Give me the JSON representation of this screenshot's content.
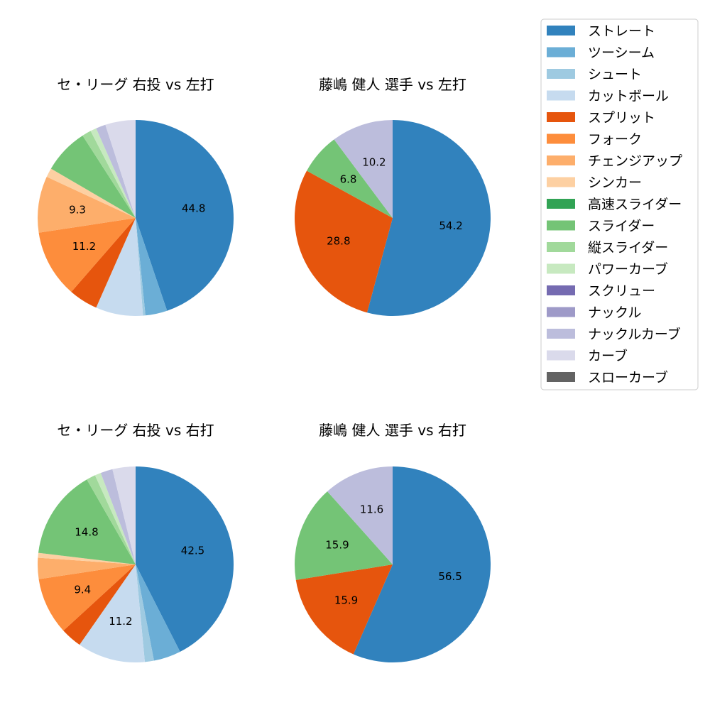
{
  "chart_data": [
    {
      "type": "pie",
      "title": "セ・リーグ 右投 vs 左打",
      "labels_shown_above_pct": 5,
      "values": {
        "ストレート": 44.8,
        "ツーシーム": 3.6,
        "シュート": 0.4,
        "カットボール": 7.8,
        "スプリット": 4.8,
        "フォーク": 11.2,
        "チェンジアップ": 9.3,
        "シンカー": 1.5,
        "スライダー": 7.5,
        "縦スライダー": 1.5,
        "パワーカーブ": 1.0,
        "ナックルカーブ": 1.6,
        "カーブ": 5.0
      },
      "data_labels": [
        "44.8",
        "11.2",
        "9.3"
      ]
    },
    {
      "type": "pie",
      "title": "藤嶋 健人 選手 vs 左打",
      "values": {
        "ストレート": 54.2,
        "スプリット": 28.8,
        "スライダー": 6.8,
        "ナックルカーブ": 10.2
      },
      "data_labels": [
        "54.2",
        "28.8",
        "6.8",
        "10.2"
      ]
    },
    {
      "type": "pie",
      "title": "セ・リーグ 右投 vs 右打",
      "values": {
        "ストレート": 42.5,
        "ツーシーム": 4.5,
        "シュート": 1.5,
        "カットボール": 11.2,
        "スプリット": 3.5,
        "フォーク": 9.4,
        "チェンジアップ": 3.5,
        "シンカー": 0.8,
        "スライダー": 14.8,
        "縦スライダー": 1.5,
        "パワーカーブ": 1.0,
        "ナックルカーブ": 2.0,
        "カーブ": 3.8
      },
      "data_labels": [
        "42.5",
        "11.2",
        "9.4",
        "14.8"
      ]
    },
    {
      "type": "pie",
      "title": "藤嶋 健人 選手 vs 右打",
      "values": {
        "ストレート": 56.5,
        "スプリット": 15.9,
        "スライダー": 15.9,
        "ナックルカーブ": 11.6
      },
      "data_labels": [
        "56.5",
        "15.9",
        "15.9",
        "11.6"
      ]
    }
  ],
  "legend": {
    "placement": "top-right",
    "entries": [
      {
        "name": "ストレート",
        "color": "#3182bd"
      },
      {
        "name": "ツーシーム",
        "color": "#6baed6"
      },
      {
        "name": "シュート",
        "color": "#9ecae1"
      },
      {
        "name": "カットボール",
        "color": "#c6dbef"
      },
      {
        "name": "スプリット",
        "color": "#e6550d"
      },
      {
        "name": "フォーク",
        "color": "#fd8d3c"
      },
      {
        "name": "チェンジアップ",
        "color": "#fdae6b"
      },
      {
        "name": "シンカー",
        "color": "#fdd0a2"
      },
      {
        "name": "高速スライダー",
        "color": "#31a354"
      },
      {
        "name": "スライダー",
        "color": "#74c476"
      },
      {
        "name": "縦スライダー",
        "color": "#a1d99b"
      },
      {
        "name": "パワーカーブ",
        "color": "#c7e9c0"
      },
      {
        "name": "スクリュー",
        "color": "#756bb1"
      },
      {
        "name": "ナックル",
        "color": "#9e9ac8"
      },
      {
        "name": "ナックルカーブ",
        "color": "#bcbddc"
      },
      {
        "name": "カーブ",
        "color": "#dadaeb"
      },
      {
        "name": "スローカーブ",
        "color": "#636363"
      }
    ]
  }
}
